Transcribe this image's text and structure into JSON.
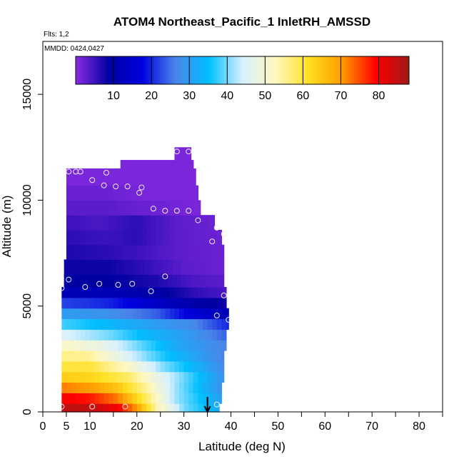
{
  "chart_data": {
    "type": "heatmap",
    "title": "ATOM4 Northeast_Pacific_1 InletRH_AMSSD",
    "subtitle_flights": "Flts: 1,2",
    "subtitle_dates": "MMDD: 0424,0427",
    "xlabel": "Latitude (deg N)",
    "ylabel": "Altitude (m)",
    "xlim": [
      0,
      85
    ],
    "ylim": [
      0,
      17500
    ],
    "x_ticks": [
      0,
      5,
      10,
      20,
      30,
      40,
      50,
      60,
      70,
      80
    ],
    "x_minor_ticks": [
      15,
      25,
      35,
      45,
      55,
      65,
      75,
      85
    ],
    "y_ticks": [
      0,
      5000,
      10000,
      15000
    ],
    "colorbar": {
      "min": 0,
      "max": 88,
      "ticks": [
        10,
        20,
        30,
        40,
        50,
        60,
        70,
        80
      ],
      "colors": [
        "#8a2be2",
        "#0000a0",
        "#0000e0",
        "#4a86e8",
        "#00bfff",
        "#d8f0ff",
        "#fff8c0",
        "#ffe020",
        "#ff9900",
        "#ff0000",
        "#a01818"
      ]
    },
    "arrow_latitude": 35,
    "profile_rows": [
      {
        "alt": [
          0,
          400
        ],
        "lat": [
          4,
          37.5
        ],
        "rh": [
          [
            4,
            85
          ],
          [
            10,
            85
          ],
          [
            16,
            80
          ],
          [
            20,
            70
          ],
          [
            24,
            55
          ],
          [
            30,
            40
          ],
          [
            37.5,
            32
          ]
        ]
      },
      {
        "alt": [
          400,
          900
        ],
        "lat": [
          4,
          38
        ],
        "rh": [
          [
            4,
            80
          ],
          [
            10,
            78
          ],
          [
            16,
            72
          ],
          [
            22,
            58
          ],
          [
            28,
            42
          ],
          [
            38,
            30
          ]
        ]
      },
      {
        "alt": [
          900,
          1400
        ],
        "lat": [
          4,
          38
        ],
        "rh": [
          [
            4,
            72
          ],
          [
            10,
            70
          ],
          [
            16,
            65
          ],
          [
            22,
            55
          ],
          [
            28,
            42
          ],
          [
            38,
            28
          ]
        ]
      },
      {
        "alt": [
          1400,
          1900
        ],
        "lat": [
          4,
          38.5
        ],
        "rh": [
          [
            4,
            64
          ],
          [
            10,
            63
          ],
          [
            18,
            58
          ],
          [
            26,
            45
          ],
          [
            38.5,
            28
          ]
        ]
      },
      {
        "alt": [
          1900,
          2400
        ],
        "lat": [
          4,
          38.5
        ],
        "rh": [
          [
            4,
            60
          ],
          [
            10,
            60
          ],
          [
            18,
            52
          ],
          [
            26,
            40
          ],
          [
            38.5,
            27
          ]
        ]
      },
      {
        "alt": [
          2400,
          2900
        ],
        "lat": [
          4,
          38.5
        ],
        "rh": [
          [
            4,
            56
          ],
          [
            10,
            55
          ],
          [
            18,
            45
          ],
          [
            26,
            36
          ],
          [
            38.5,
            26
          ]
        ]
      },
      {
        "alt": [
          2900,
          3400
        ],
        "lat": [
          4,
          39
        ],
        "rh": [
          [
            4,
            52
          ],
          [
            12,
            48
          ],
          [
            20,
            40
          ],
          [
            28,
            32
          ],
          [
            39,
            26
          ]
        ]
      },
      {
        "alt": [
          3400,
          3900
        ],
        "lat": [
          4,
          39
        ],
        "rh": [
          [
            4,
            45
          ],
          [
            14,
            40
          ],
          [
            22,
            34
          ],
          [
            30,
            30
          ],
          [
            39,
            24
          ]
        ]
      },
      {
        "alt": [
          3900,
          4400
        ],
        "lat": [
          4,
          39.5
        ],
        "rh": [
          [
            4,
            38
          ],
          [
            14,
            34
          ],
          [
            24,
            30
          ],
          [
            32,
            27
          ],
          [
            39.5,
            20
          ]
        ]
      },
      {
        "alt": [
          4400,
          4900
        ],
        "lat": [
          4,
          39.5
        ],
        "rh": [
          [
            4,
            30
          ],
          [
            14,
            28
          ],
          [
            24,
            24
          ],
          [
            32,
            16
          ],
          [
            39.5,
            12
          ]
        ]
      },
      {
        "alt": [
          4900,
          5400
        ],
        "lat": [
          4,
          39
        ],
        "rh": [
          [
            4,
            22
          ],
          [
            14,
            20
          ],
          [
            24,
            14
          ],
          [
            32,
            10
          ],
          [
            39,
            8
          ]
        ]
      },
      {
        "alt": [
          5400,
          5900
        ],
        "lat": [
          4,
          39
        ],
        "rh": [
          [
            4,
            12
          ],
          [
            14,
            12
          ],
          [
            24,
            10
          ],
          [
            32,
            6
          ],
          [
            39,
            4
          ]
        ]
      },
      {
        "alt": [
          5900,
          6500
        ],
        "lat": [
          4.5,
          38.5
        ],
        "rh": [
          [
            4.5,
            9
          ],
          [
            14,
            9
          ],
          [
            24,
            7
          ],
          [
            32,
            4
          ],
          [
            38.5,
            3
          ]
        ]
      },
      {
        "alt": [
          6500,
          7200
        ],
        "lat": [
          4.5,
          38.5
        ],
        "rh": [
          [
            4.5,
            8
          ],
          [
            14,
            8
          ],
          [
            24,
            5
          ],
          [
            30,
            3
          ],
          [
            38.5,
            2
          ]
        ]
      },
      {
        "alt": [
          7200,
          7900
        ],
        "lat": [
          5,
          38.5
        ],
        "rh": [
          [
            5,
            7
          ],
          [
            14,
            6
          ],
          [
            20,
            5
          ],
          [
            28,
            3
          ],
          [
            38.5,
            2
          ]
        ]
      },
      {
        "alt": [
          7900,
          8600
        ],
        "lat": [
          5,
          38
        ],
        "rh": [
          [
            5,
            6
          ],
          [
            14,
            5
          ],
          [
            20,
            6
          ],
          [
            28,
            3
          ],
          [
            38,
            2
          ]
        ]
      },
      {
        "alt": [
          8600,
          9300
        ],
        "lat": [
          5,
          36.5
        ],
        "rh": [
          [
            5,
            5
          ],
          [
            12,
            4
          ],
          [
            20,
            6
          ],
          [
            28,
            3
          ],
          [
            36.5,
            2
          ]
        ]
      },
      {
        "alt": [
          9300,
          10000
        ],
        "lat": [
          5,
          33.5
        ],
        "rh": [
          [
            5,
            3
          ],
          [
            14,
            3
          ],
          [
            22,
            2
          ],
          [
            33.5,
            1
          ]
        ]
      },
      {
        "alt": [
          10000,
          10700
        ],
        "lat": [
          5,
          33
        ],
        "rh": [
          [
            5,
            2
          ],
          [
            14,
            2
          ],
          [
            22,
            1
          ],
          [
            33,
            1
          ]
        ]
      },
      {
        "alt": [
          10700,
          11500
        ],
        "lat": [
          5,
          32.5
        ],
        "rh": [
          [
            5,
            1
          ],
          [
            14,
            1
          ],
          [
            22,
            1
          ],
          [
            32.5,
            1
          ]
        ]
      },
      {
        "alt": [
          11500,
          11900
        ],
        "lat": [
          16.5,
          32
        ],
        "rh": [
          [
            16.5,
            1
          ],
          [
            32,
            1
          ]
        ]
      },
      {
        "alt": [
          11900,
          12500
        ],
        "lat": [
          28,
          31.5
        ],
        "rh": [
          [
            28,
            1
          ],
          [
            31.5,
            1
          ]
        ]
      }
    ],
    "sample_points": [
      [
        5.5,
        11350
      ],
      [
        7,
        11350
      ],
      [
        8,
        11350
      ],
      [
        10.5,
        10950
      ],
      [
        13.5,
        11300
      ],
      [
        13,
        10700
      ],
      [
        15.5,
        10650
      ],
      [
        18,
        10650
      ],
      [
        20.5,
        10350
      ],
      [
        21,
        10600
      ],
      [
        23.5,
        9600
      ],
      [
        26,
        9500
      ],
      [
        28.5,
        9500
      ],
      [
        31,
        9500
      ],
      [
        33,
        9050
      ],
      [
        36,
        8050
      ],
      [
        37,
        8700
      ],
      [
        38.5,
        8400
      ],
      [
        28.5,
        12300
      ],
      [
        31,
        12300
      ],
      [
        4,
        5850
      ],
      [
        5.5,
        6250
      ],
      [
        9,
        5900
      ],
      [
        12,
        6050
      ],
      [
        16,
        6000
      ],
      [
        19,
        6050
      ],
      [
        23,
        5700
      ],
      [
        26,
        6400
      ],
      [
        37,
        4550
      ],
      [
        38.5,
        5500
      ],
      [
        39.5,
        4350
      ],
      [
        4,
        250
      ],
      [
        10.5,
        250
      ],
      [
        17.5,
        250
      ],
      [
        24.5,
        200
      ],
      [
        37,
        350
      ]
    ]
  }
}
